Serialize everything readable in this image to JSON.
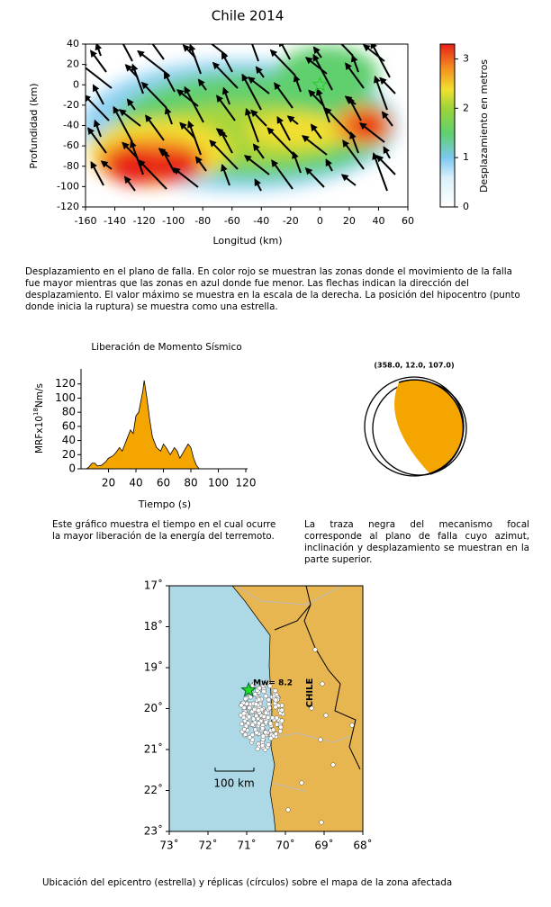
{
  "slip_map": {
    "title": "Chile 2014",
    "xlabel": "Longitud (km)",
    "ylabel": "Profundidad (km)",
    "xlim": [
      -160,
      60
    ],
    "xticks": [
      -160,
      -140,
      -120,
      -100,
      -80,
      -60,
      -40,
      -20,
      0,
      20,
      40,
      60
    ],
    "ylim": [
      -120,
      40
    ],
    "yticks": [
      -120,
      -100,
      -80,
      -60,
      -40,
      -20,
      0,
      20,
      40
    ],
    "colorbar": {
      "label": "Desplazamiento en metros",
      "lim": [
        0,
        3.3
      ],
      "ticks": [
        0,
        1,
        2,
        3
      ]
    },
    "hypocenter": [
      0,
      0
    ]
  },
  "caption_slip": "Desplazamiento en el plano de falla.  En color rojo se muestran las zonas donde el movimiento de la falla fue mayor mientras que las zonas en azul donde fue menor.  Las flechas indican la dirección del desplazamiento.  El valor máximo se muestra en la escala de la derecha.  La posición del hipocentro (punto donde inicia la ruptura) se muestra como una estrella.",
  "chart_data": {
    "type": "area",
    "title": "Liberación de Momento Sísmico",
    "xlabel": "Tiempo (s)",
    "ylabel": "MRFx10",
    "ylabel_exp": "18",
    "ylabel_unit": "Nm/s",
    "color": "#f5a500",
    "x": [
      4,
      6,
      8,
      10,
      12,
      15,
      18,
      20,
      23,
      25,
      28,
      30,
      33,
      36,
      38,
      40,
      42,
      44,
      45,
      46,
      48,
      50,
      52,
      55,
      58,
      60,
      62,
      65,
      68,
      70,
      72,
      75,
      78,
      80,
      82,
      84,
      86
    ],
    "values": [
      0,
      3,
      8,
      8,
      4,
      5,
      10,
      15,
      18,
      22,
      30,
      25,
      40,
      55,
      50,
      75,
      80,
      100,
      110,
      125,
      100,
      70,
      45,
      30,
      25,
      35,
      30,
      20,
      30,
      25,
      15,
      25,
      35,
      30,
      15,
      5,
      0
    ],
    "xlim": [
      0,
      120
    ],
    "xticks": [
      20,
      40,
      60,
      80,
      100,
      120
    ],
    "ylim": [
      0,
      140
    ],
    "yticks": [
      0,
      20,
      40,
      60,
      80,
      100,
      120
    ]
  },
  "caption_mrf": "Este gráfico muestra el tiempo en el cual ocurre la mayor liberación de la energía del terremoto.",
  "focal": {
    "label": "(358.0,  12.0, 107.0)"
  },
  "caption_focal": "La traza negra del mecanismo focal corresponde al plano de falla cuyo azimut, inclinación y desplazamiento se muestran en la parte superior.",
  "map": {
    "lonlim": [
      -73,
      -68
    ],
    "latlim": [
      17,
      23
    ],
    "lon_ticks": [
      {
        "value": -73,
        "label": "73˚"
      },
      {
        "value": -72,
        "label": "72˚"
      },
      {
        "value": -71,
        "label": "71˚"
      },
      {
        "value": -70,
        "label": "70˚"
      },
      {
        "value": -69,
        "label": "69˚"
      },
      {
        "value": -68,
        "label": "68˚"
      }
    ],
    "lat_ticks": [
      {
        "value": 17,
        "label": "17˚"
      },
      {
        "value": 18,
        "label": "18˚"
      },
      {
        "value": 19,
        "label": "19˚"
      },
      {
        "value": 20,
        "label": "20˚"
      },
      {
        "value": 21,
        "label": "21˚"
      },
      {
        "value": 22,
        "label": "22˚"
      },
      {
        "value": 23,
        "label": "23˚"
      }
    ],
    "country": "CHILE",
    "magnitude_label": "Mw= 8.2",
    "scale_label": "100 km",
    "epicenter": [
      -70.95,
      19.55
    ]
  },
  "caption_map": "Ubicación del epicentro (estrella) y réplicas (círculos) sobre el mapa de la zona afectada"
}
